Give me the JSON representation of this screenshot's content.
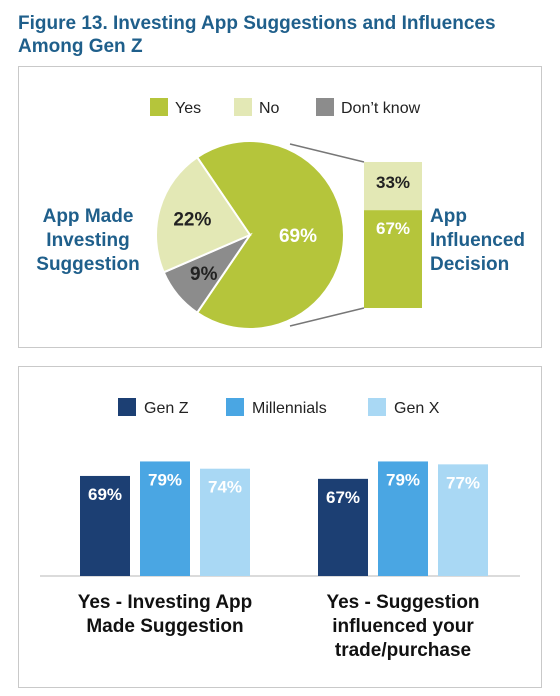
{
  "title": "Figure 13. Investing App Suggestions and Influences Among Gen Z",
  "colors": {
    "title": "#1f5f8b",
    "yes": "#b5c53b",
    "no": "#e3e8b5",
    "dontknow": "#8c8c8c",
    "genz": "#1c3f73",
    "millennials": "#4aa6e3",
    "genx": "#a9d8f4"
  },
  "chart_data": [
    {
      "type": "pie",
      "legend": [
        "Yes",
        "No",
        "Don’t know"
      ],
      "legend_placement": "top",
      "label": "App Made Investing Suggestion",
      "slices": [
        {
          "name": "Yes",
          "value": 69,
          "label": "69%"
        },
        {
          "name": "Don’t know",
          "value": 9,
          "label": "9%"
        },
        {
          "name": "No",
          "value": 22,
          "label": "22%"
        }
      ]
    },
    {
      "type": "bar",
      "stacked": true,
      "label": "App Influenced Decision",
      "segments": [
        {
          "name": "Yes",
          "value": 67,
          "label": "67%"
        },
        {
          "name": "No",
          "value": 33,
          "label": "33%"
        }
      ]
    },
    {
      "type": "bar",
      "legend": [
        "Gen Z",
        "Millennials",
        "Gen X"
      ],
      "legend_placement": "top",
      "categories": [
        "Yes - Investing App Made Suggestion",
        "Yes - Suggestion influenced your trade/purchase"
      ],
      "series": [
        {
          "name": "Gen Z",
          "values": [
            69,
            67
          ],
          "labels": [
            "69%",
            "67%"
          ]
        },
        {
          "name": "Millennials",
          "values": [
            79,
            79
          ],
          "labels": [
            "79%",
            "79%"
          ]
        },
        {
          "name": "Gen X",
          "values": [
            74,
            77
          ],
          "labels": [
            "74%",
            "77%"
          ]
        }
      ]
    }
  ]
}
